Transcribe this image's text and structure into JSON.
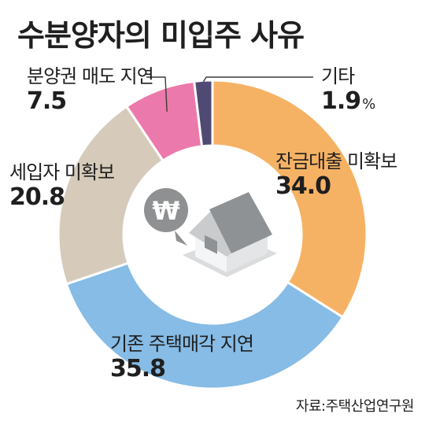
{
  "chart_data": {
    "type": "pie",
    "title": "수분양자의 미입주 사유",
    "unit": "%",
    "start_angle_deg": 0,
    "slices": [
      {
        "name": "잔금대출 미확보",
        "value": 34.0,
        "value_label": "34.0",
        "color": "#F6B264"
      },
      {
        "name": "기존 주택매각 지연",
        "value": 35.8,
        "value_label": "35.8",
        "color": "#86BCE6"
      },
      {
        "name": "세입자 미확보",
        "value": 20.8,
        "value_label": "20.8",
        "color": "#D6CBBA"
      },
      {
        "name": "분양권 매도 지연",
        "value": 7.5,
        "value_label": "7.5",
        "color": "#EC79AB"
      },
      {
        "name": "기타",
        "value": 1.9,
        "value_label": "1.9",
        "color": "#4F4A73"
      }
    ],
    "icon_colors": {
      "coin": "#8E9091",
      "roof": "#8F9294",
      "wall": "#F2F3F4",
      "shadow": "#D9DBDC"
    },
    "source": "자료:주택산업연구원"
  }
}
